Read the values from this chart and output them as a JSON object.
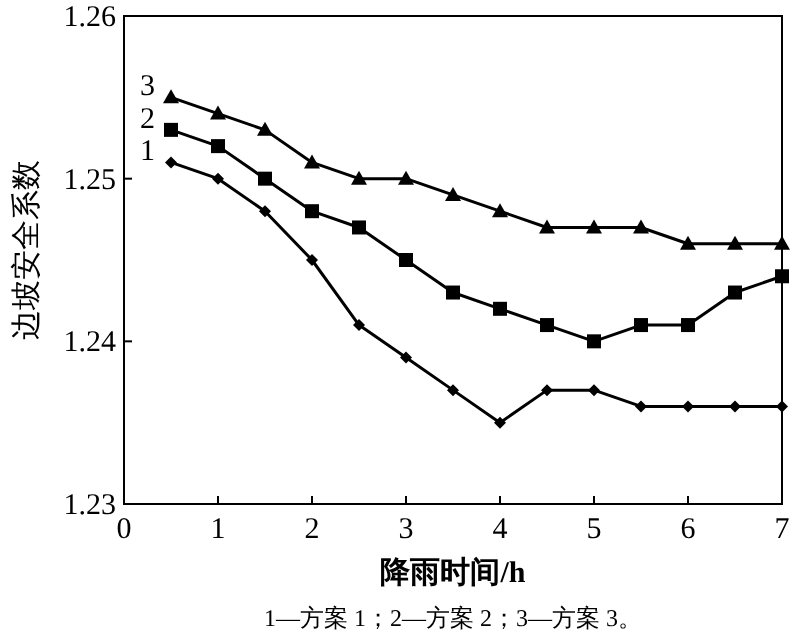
{
  "chart_data": {
    "type": "line",
    "xlabel": "降雨时间/h",
    "ylabel": "边坡安全系数",
    "annotations": [
      "1—方案 1；2—方案 2；3—方案 3。"
    ],
    "x": [
      0.5,
      1,
      1.5,
      2,
      2.5,
      3,
      3.5,
      4,
      4.5,
      5,
      5.5,
      6,
      6.5,
      7
    ],
    "xlim": [
      0,
      7
    ],
    "xticks": [
      0,
      1,
      2,
      3,
      4,
      5,
      6,
      7
    ],
    "ylim": [
      1.23,
      1.26
    ],
    "yticks": [
      1.23,
      1.24,
      1.25,
      1.26
    ],
    "grid": false,
    "line_style": "solid",
    "series": [
      {
        "name": "1",
        "color": "#000000",
        "marker": "diamond",
        "values": [
          1.251,
          1.25,
          1.248,
          1.245,
          1.241,
          1.239,
          1.237,
          1.235,
          1.237,
          1.237,
          1.236,
          1.236,
          1.236,
          1.236
        ]
      },
      {
        "name": "2",
        "color": "#000000",
        "marker": "square",
        "values": [
          1.253,
          1.252,
          1.25,
          1.248,
          1.247,
          1.245,
          1.243,
          1.242,
          1.241,
          1.24,
          1.241,
          1.241,
          1.243,
          1.244
        ]
      },
      {
        "name": "3",
        "color": "#000000",
        "marker": "triangle",
        "values": [
          1.255,
          1.254,
          1.253,
          1.251,
          1.25,
          1.25,
          1.249,
          1.248,
          1.247,
          1.247,
          1.247,
          1.246,
          1.246,
          1.246
        ]
      }
    ]
  }
}
